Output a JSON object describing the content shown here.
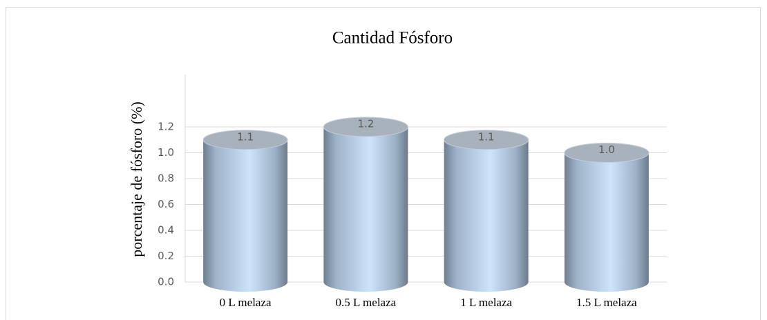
{
  "chart_data": {
    "type": "bar",
    "title": "Cantidad Fósforo",
    "y_label": "porcentaje de fósforo (%)",
    "categories": [
      "0 L melaza",
      "0.5 L melaza",
      "1 L melaza",
      "1.5 L melaza"
    ],
    "values": [
      1.1,
      1.2,
      1.1,
      1.0
    ],
    "value_labels": [
      "1.1",
      "1.2",
      "1.1",
      "1.0"
    ],
    "color": "#a9c4e4",
    "ylim": [
      0,
      1.6
    ],
    "yticks": [
      {
        "value": 0,
        "label": "0.0"
      },
      0.2,
      0.4,
      0.6,
      0.8,
      {
        "value": 1,
        "label": "1.0"
      },
      1.2
    ],
    "grid": true
  }
}
